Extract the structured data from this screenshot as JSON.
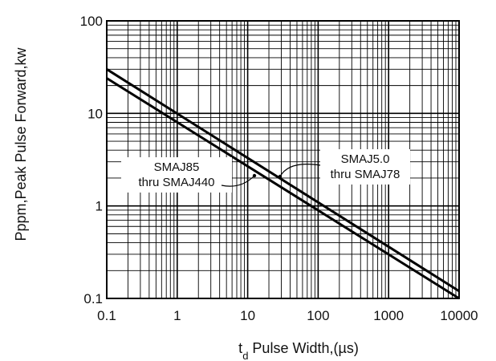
{
  "chart_data": {
    "type": "line",
    "title": "",
    "xlabel": {
      "prefix": "t",
      "subscript": "d",
      "text": " Pulse Width,(µs)"
    },
    "ylabel": "Pppm,Peak Pulse Forward,kw",
    "x_scale": "log",
    "y_scale": "log",
    "xlim": [
      0.1,
      10000
    ],
    "ylim": [
      0.1,
      100
    ],
    "x_ticks": [
      "0.1",
      "1",
      "10",
      "100",
      "1000",
      "10000"
    ],
    "y_ticks": [
      "0.1",
      "1",
      "10",
      "100"
    ],
    "grid": true,
    "series": [
      {
        "name": "SMAJ5.0 thru SMAJ78",
        "x": [
          0.1,
          10000
        ],
        "y": [
          30,
          0.12
        ]
      },
      {
        "name": "SMAJ85 thru SMAJ440",
        "x": [
          0.1,
          10000
        ],
        "y": [
          24,
          0.1
        ]
      }
    ],
    "annotations": [
      {
        "lines": [
          "SMAJ85",
          "thru SMAJ440"
        ]
      },
      {
        "lines": [
          "SMAJ5.0",
          "thru SMAJ78"
        ]
      }
    ]
  }
}
